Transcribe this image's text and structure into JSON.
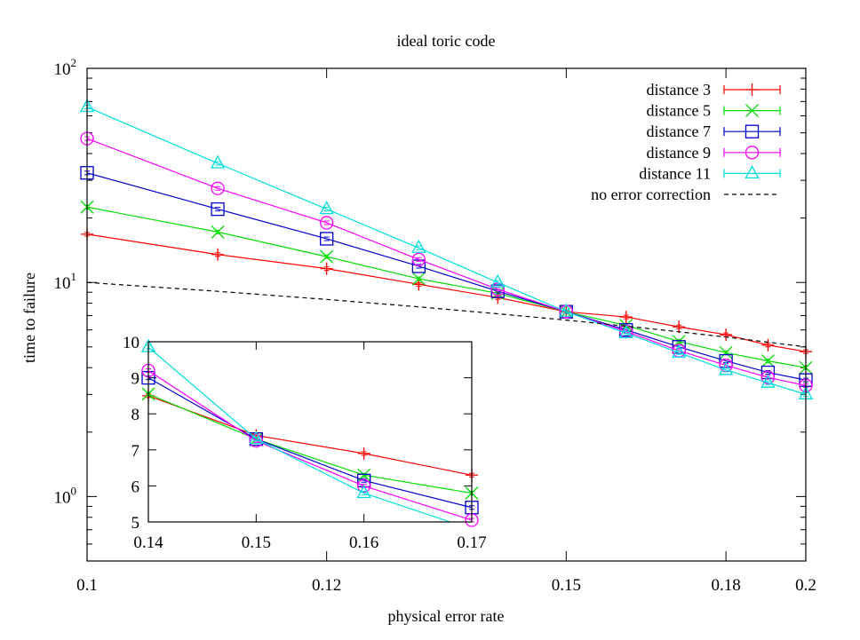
{
  "chart_data": [
    {
      "type": "line",
      "title": "ideal toric code",
      "xlabel": "physical error rate",
      "ylabel": "time to failure",
      "xscale": "reciprocal",
      "yscale": "log",
      "xlim": [
        0.1,
        0.2
      ],
      "ylim": [
        0.5,
        100
      ],
      "xticks": [
        {
          "value": 0.1,
          "label": "0.1"
        },
        {
          "value": 0.12,
          "label": "0.12"
        },
        {
          "value": 0.15,
          "label": "0.15"
        },
        {
          "value": 0.18,
          "label": "0.18"
        },
        {
          "value": 0.2,
          "label": "0.2"
        }
      ],
      "yticks": [
        {
          "value": 1,
          "base": "10",
          "exp": "0"
        },
        {
          "value": 10,
          "base": "10",
          "exp": "1"
        },
        {
          "value": 100,
          "base": "10",
          "exp": "2"
        }
      ],
      "legend_position": "top-right",
      "x": [
        0.1,
        0.11,
        0.12,
        0.13,
        0.14,
        0.15,
        0.16,
        0.17,
        0.18,
        0.19,
        0.2
      ],
      "series": [
        {
          "name": "distance 3",
          "color": "#ff0000",
          "marker": "plus",
          "values": [
            16.8,
            13.5,
            11.6,
            9.8,
            8.5,
            7.3,
            6.9,
            6.2,
            5.7,
            5.1,
            4.75
          ]
        },
        {
          "name": "distance 5",
          "color": "#00dd00",
          "marker": "cross",
          "values": [
            22.5,
            17.2,
            13.2,
            10.4,
            8.9,
            7.3,
            6.3,
            5.3,
            4.7,
            4.3,
            4.0
          ]
        },
        {
          "name": "distance 7",
          "color": "#0000cc",
          "marker": "square",
          "values": [
            32.5,
            22.0,
            16.0,
            11.9,
            9.1,
            7.3,
            6.0,
            5.0,
            4.3,
            3.8,
            3.5
          ]
        },
        {
          "name": "distance 9",
          "color": "#ff00ff",
          "marker": "circle",
          "values": [
            47.0,
            27.5,
            19.0,
            12.8,
            9.3,
            7.3,
            5.9,
            4.8,
            4.1,
            3.6,
            3.3
          ]
        },
        {
          "name": "distance 11",
          "color": "#00dddd",
          "marker": "triangle",
          "values": [
            66.0,
            36.0,
            22.0,
            14.5,
            10.0,
            7.3,
            5.8,
            4.7,
            3.9,
            3.4,
            3.0
          ]
        },
        {
          "name": "no error correction",
          "color": "#000000",
          "marker": "none",
          "dash": true,
          "values": [
            10.0,
            9.09,
            8.33,
            7.69,
            7.14,
            6.67,
            6.25,
            5.88,
            5.56,
            5.26,
            5.0
          ]
        }
      ]
    },
    {
      "type": "line",
      "title": "",
      "xlabel": "",
      "ylabel": "",
      "xscale": "linear",
      "yscale": "linear",
      "xlim": [
        0.14,
        0.17
      ],
      "ylim": [
        5,
        10
      ],
      "xticks": [
        {
          "value": 0.14,
          "label": "0.14"
        },
        {
          "value": 0.15,
          "label": "0.15"
        },
        {
          "value": 0.16,
          "label": "0.16"
        },
        {
          "value": 0.17,
          "label": "0.17"
        }
      ],
      "yticks": [
        {
          "value": 5,
          "label": "5"
        },
        {
          "value": 6,
          "label": "6"
        },
        {
          "value": 7,
          "label": "7"
        },
        {
          "value": 8,
          "label": "8"
        },
        {
          "value": 9,
          "label": "9"
        },
        {
          "value": 10,
          "label": "10"
        }
      ],
      "x": [
        0.14,
        0.15,
        0.16,
        0.17
      ],
      "series": [
        {
          "name": "distance 3",
          "color": "#ff0000",
          "marker": "plus",
          "values": [
            8.5,
            7.4,
            6.9,
            6.3
          ]
        },
        {
          "name": "distance 5",
          "color": "#00dd00",
          "marker": "cross",
          "values": [
            8.55,
            7.3,
            6.3,
            5.8
          ]
        },
        {
          "name": "distance 7",
          "color": "#0000cc",
          "marker": "square",
          "values": [
            9.0,
            7.3,
            6.15,
            5.4
          ]
        },
        {
          "name": "distance 9",
          "color": "#ff00ff",
          "marker": "circle",
          "values": [
            9.2,
            7.25,
            6.0,
            5.05
          ]
        },
        {
          "name": "distance 11",
          "color": "#00dddd",
          "marker": "triangle",
          "values": [
            9.85,
            7.3,
            5.8,
            4.8
          ]
        }
      ]
    }
  ]
}
